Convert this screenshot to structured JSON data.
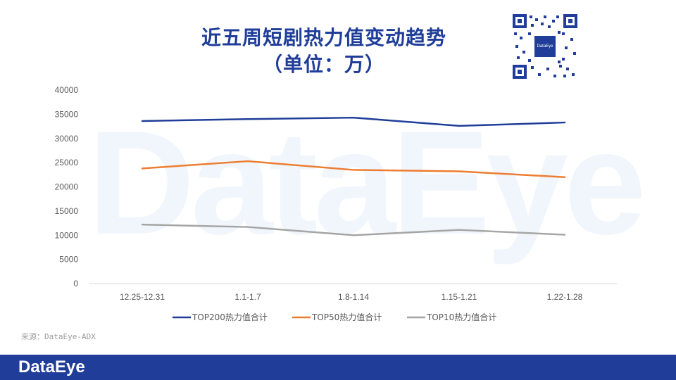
{
  "title_line1": "近五周短剧热力值变动趋势",
  "title_line2": "（单位：万）",
  "watermark_text": "DataEye",
  "source": "来源：DataEye-ADX",
  "footer_logo": "DataEye",
  "qr_logo_text": "DataEye",
  "colors": {
    "brand": "#1f3d99",
    "top200": "#1f3d99",
    "top50": "#ed7d31",
    "top10": "#a5a5a5"
  },
  "chart_data": {
    "type": "line",
    "categories": [
      "12.25-12.31",
      "1.1-1.7",
      "1.8-1.14",
      "1.15-1.21",
      "1.22-1.28"
    ],
    "series": [
      {
        "name": "TOP200热力值合计",
        "values": [
          33600,
          34000,
          34300,
          32600,
          33300
        ]
      },
      {
        "name": "TOP50热力值合计",
        "values": [
          23800,
          25300,
          23500,
          23200,
          22000
        ]
      },
      {
        "name": "TOP10热力值合计",
        "values": [
          12200,
          11700,
          10000,
          11100,
          10100
        ]
      }
    ],
    "yticks": [
      0,
      5000,
      10000,
      15000,
      20000,
      25000,
      30000,
      35000,
      40000
    ],
    "ylim": [
      0,
      40000
    ],
    "grid": false,
    "legend_position": "bottom"
  }
}
